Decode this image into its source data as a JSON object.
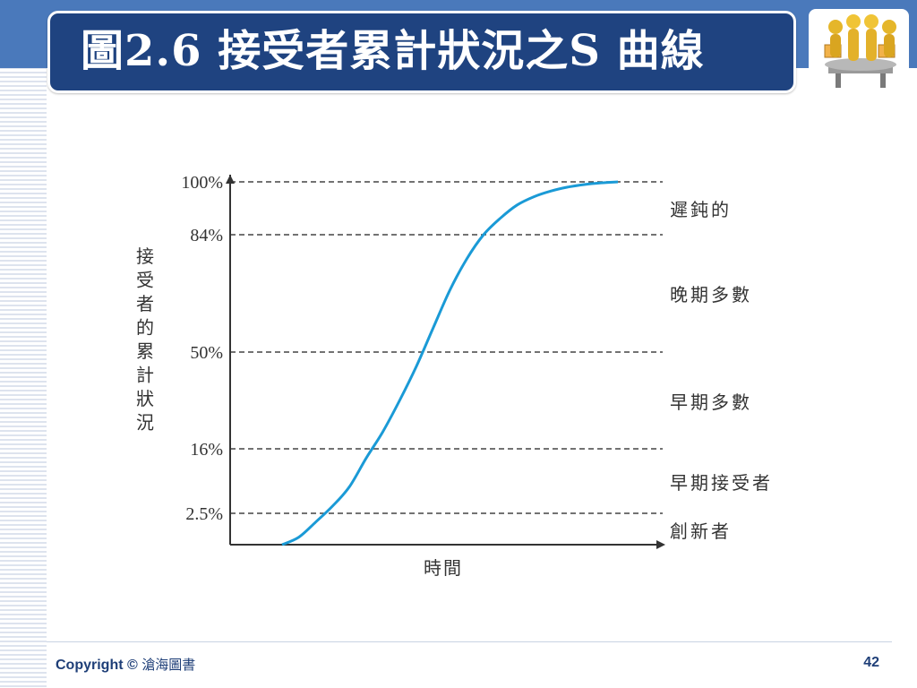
{
  "slide": {
    "title": "圖2.6 接受者累計狀況之S 曲線",
    "footer_copyright": "Copyright ©",
    "footer_publisher": "滄海圖書",
    "page_number": "42",
    "logo_icon": "teamwork-figures-icon"
  },
  "colors": {
    "title_bg": "#1f4380",
    "band": "#4a79bb",
    "curve": "#1a9ad6",
    "axis": "#333333"
  },
  "chart_data": {
    "type": "line",
    "title": "",
    "xlabel": "時間",
    "ylabel": "接受者的累計狀況",
    "ylim": [
      0,
      100
    ],
    "yticks": [
      {
        "value": 2.5,
        "label": "2.5%"
      },
      {
        "value": 16,
        "label": "16%"
      },
      {
        "value": 50,
        "label": "50%"
      },
      {
        "value": 84,
        "label": "84%"
      },
      {
        "value": 100,
        "label": "100%"
      }
    ],
    "band_labels": [
      "遲鈍的",
      "晚期多數",
      "早期多數",
      "早期接受者",
      "創新者"
    ],
    "grid": "dashed horizontal at tick values",
    "series": [
      {
        "values_description_only": false,
        "x": [
          0,
          0.05,
          0.1,
          0.15,
          0.2,
          0.25,
          0.3,
          0.35,
          0.4,
          0.45,
          0.5,
          0.55,
          0.6,
          0.65,
          0.7,
          0.75,
          0.8,
          0.85,
          0.9,
          0.95,
          1.0
        ],
        "y": [
          0,
          0.6,
          1.8,
          4,
          8,
          14,
          22,
          33,
          45,
          57,
          68,
          77,
          84,
          89,
          93,
          95.5,
          97.2,
          98.4,
          99.2,
          99.7,
          100
        ]
      }
    ]
  }
}
